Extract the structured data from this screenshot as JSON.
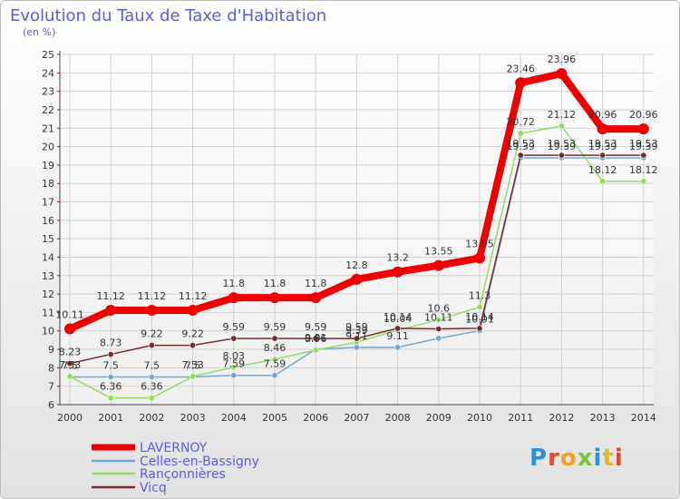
{
  "title": "Evolution du Taux de Taxe d'Habitation",
  "unit_label": "(en %)",
  "logo_text": "Proxiti",
  "chart_data": {
    "type": "line",
    "title": "Evolution du Taux de Taxe d'Habitation",
    "ylabel": "(en %)",
    "x": [
      2000,
      2001,
      2002,
      2003,
      2004,
      2005,
      2006,
      2007,
      2008,
      2009,
      2010,
      2011,
      2012,
      2013,
      2014
    ],
    "ylim": [
      6,
      25
    ],
    "yticks": [
      6,
      7,
      8,
      9,
      10,
      11,
      12,
      13,
      14,
      15,
      16,
      17,
      18,
      19,
      20,
      21,
      22,
      23,
      24,
      25
    ],
    "grid": true,
    "legend_position": "bottom-left",
    "series": [
      {
        "name": "LAVERNOY",
        "color": "#ee0000",
        "values": [
          10.11,
          11.12,
          11.12,
          11.12,
          11.8,
          11.8,
          11.8,
          12.8,
          13.2,
          13.55,
          13.95,
          23.46,
          23.96,
          20.96,
          20.96
        ]
      },
      {
        "name": "Celles-en-Bassigny",
        "color": "#6ea8d8",
        "values": [
          7.5,
          7.5,
          7.5,
          7.5,
          7.59,
          7.59,
          9.01,
          9.11,
          9.11,
          9.6,
          10.01,
          19.39,
          19.39,
          19.39,
          19.39
        ]
      },
      {
        "name": "Rançonnières",
        "color": "#90dd60",
        "values": [
          7.53,
          6.36,
          6.36,
          7.53,
          8.03,
          8.46,
          8.96,
          9.39,
          10.04,
          10.6,
          11.3,
          20.72,
          21.12,
          18.12,
          18.12
        ]
      },
      {
        "name": "Vicq",
        "color": "#7a2a2a",
        "values": [
          8.23,
          8.73,
          9.22,
          9.22,
          9.59,
          9.59,
          9.59,
          9.59,
          10.14,
          10.11,
          10.14,
          19.53,
          19.53,
          19.53,
          19.53
        ]
      }
    ],
    "labels": [
      [
        [
          "10.11"
        ],
        [
          "11.12"
        ],
        [
          "11.12"
        ],
        [
          "11.12"
        ],
        [
          "11.8"
        ],
        [
          "11.8"
        ],
        [
          "11.8"
        ],
        [
          "12.8"
        ],
        [
          "13.2"
        ],
        [
          "13.55"
        ],
        [
          "13.95"
        ],
        [
          "23.46"
        ],
        [
          "23.96"
        ],
        [
          "20.96"
        ],
        [
          "20.96"
        ]
      ],
      [
        [
          "7.5"
        ],
        [
          "7.5"
        ],
        [
          "7.5"
        ],
        [
          "7.5"
        ],
        [
          "7.59"
        ],
        [
          "7.59"
        ],
        [
          "9.01"
        ],
        [
          "9.11"
        ],
        [
          "9.11"
        ],
        [],
        [
          "10.01"
        ],
        [
          "19.39"
        ],
        [
          "19.39"
        ],
        [
          "19.39"
        ],
        [
          "19.39"
        ]
      ],
      [
        [
          "7.53"
        ],
        [
          "6.36"
        ],
        [
          "6.36"
        ],
        [
          "7.53"
        ],
        [
          "8.03"
        ],
        [
          "8.46"
        ],
        [
          "8.96"
        ],
        [
          "9.39"
        ],
        [
          "10.04"
        ],
        [
          "10.6"
        ],
        [
          "11.3"
        ],
        [
          "20.72"
        ],
        [
          "21.12"
        ],
        [
          "18.12"
        ],
        [
          "18.12"
        ]
      ],
      [
        [
          "8.23"
        ],
        [
          "8.73"
        ],
        [
          "9.22"
        ],
        [
          "9.22"
        ],
        [
          "9.59"
        ],
        [
          "9.59"
        ],
        [
          "9.59"
        ],
        [
          "9.59"
        ],
        [
          "10.14"
        ],
        [
          "10.11"
        ],
        [
          "10.14"
        ],
        [
          "19.53"
        ],
        [
          "19.53"
        ],
        [
          "19.53"
        ],
        [
          "19.53"
        ]
      ]
    ]
  }
}
